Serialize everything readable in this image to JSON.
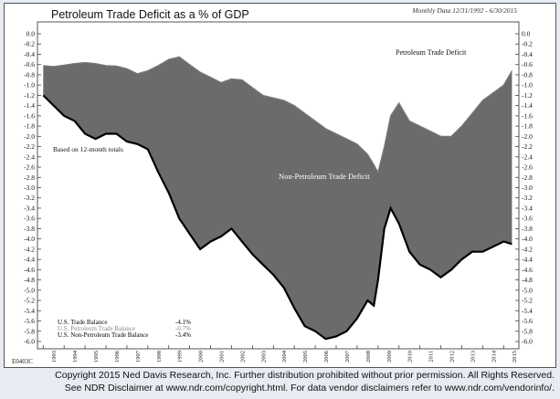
{
  "title": "Petroleum Trade Deficit as a % of GDP",
  "subtitle": "Monthly Data 12/31/1992 - 6/30/2015",
  "chart_code": "E0403C",
  "notes": {
    "based_on": "Based on 12-month totals"
  },
  "area_labels": {
    "petroleum": "Petroleum Trade Deficit",
    "non_petroleum": "Non-Petroleum Trade Deficit"
  },
  "legend": [
    {
      "label": "U.S. Trade Balance",
      "value": "-4.1%",
      "color": "#000000"
    },
    {
      "label": "U.S. Petroleum Trade Balance",
      "value": "-0.7%",
      "color": "#888888"
    },
    {
      "label": "U.S. Non-Petroleum Trade Balance",
      "value": "-3.4%",
      "color": "#000000"
    }
  ],
  "copyright": {
    "line1": "Copyright 2015 Ned Davis Research, Inc. Further distribution prohibited without prior permission. All Rights Reserved.",
    "line2": "See NDR Disclaimer at www.ndr.com/copyright.html. For data vendor disclaimers refer to www.ndr.com/vendorinfo/."
  },
  "colors": {
    "area_fill": "#6b6b6b",
    "petroleum_line": "#7a7a7a",
    "total_line": "#000000",
    "background": "#ffffff"
  },
  "chart_data": {
    "type": "area",
    "x_ticks": [
      "1993",
      "1994",
      "1995",
      "1996",
      "1997",
      "1998",
      "1999",
      "2000",
      "2001",
      "2002",
      "2003",
      "2004",
      "2005",
      "2006",
      "2007",
      "2008",
      "2009",
      "2010",
      "2011",
      "2012",
      "2013",
      "2014",
      "2015"
    ],
    "y_ticks": [
      "0.0",
      "-0.2",
      "-0.4",
      "-0.6",
      "-0.8",
      "-1.0",
      "-1.2",
      "-1.4",
      "-1.6",
      "-1.8",
      "-2.0",
      "-2.2",
      "-2.4",
      "-2.6",
      "-2.8",
      "-3.0",
      "-3.2",
      "-3.4",
      "-3.6",
      "-3.8",
      "-4.0",
      "-4.2",
      "-4.4",
      "-4.6",
      "-4.8",
      "-5.0",
      "-5.2",
      "-5.4",
      "-5.6",
      "-5.8",
      "-6.0"
    ],
    "ylim": [
      -6.2,
      0
    ],
    "xlim": [
      1992.9,
      2015.6
    ],
    "series": [
      {
        "name": "U.S. Petroleum Trade Balance",
        "x": [
          1993.0,
          1993.5,
          1994.0,
          1994.5,
          1995.0,
          1995.5,
          1996.0,
          1996.5,
          1997.0,
          1997.5,
          1998.0,
          1998.5,
          1999.0,
          1999.5,
          2000.0,
          2000.5,
          2001.0,
          2001.5,
          2002.0,
          2002.5,
          2003.0,
          2003.5,
          2004.0,
          2004.5,
          2005.0,
          2005.5,
          2006.0,
          2006.5,
          2007.0,
          2007.5,
          2008.0,
          2008.5,
          2008.8,
          2009.0,
          2009.3,
          2009.6,
          2010.0,
          2010.5,
          2011.0,
          2011.5,
          2012.0,
          2012.5,
          2013.0,
          2013.5,
          2014.0,
          2014.5,
          2015.0,
          2015.4
        ],
        "values": [
          -0.62,
          -0.64,
          -0.61,
          -0.58,
          -0.56,
          -0.58,
          -0.62,
          -0.63,
          -0.68,
          -0.78,
          -0.72,
          -0.62,
          -0.5,
          -0.45,
          -0.6,
          -0.75,
          -0.85,
          -0.95,
          -0.88,
          -0.9,
          -1.05,
          -1.2,
          -1.25,
          -1.3,
          -1.4,
          -1.55,
          -1.7,
          -1.85,
          -1.95,
          -2.05,
          -2.15,
          -2.35,
          -2.55,
          -2.7,
          -2.2,
          -1.6,
          -1.35,
          -1.7,
          -1.8,
          -1.9,
          -2.0,
          -2.0,
          -1.8,
          -1.55,
          -1.3,
          -1.15,
          -1.0,
          -0.72
        ]
      },
      {
        "name": "U.S. Trade Balance",
        "x": [
          1993.0,
          1993.5,
          1994.0,
          1994.5,
          1995.0,
          1995.5,
          1996.0,
          1996.5,
          1997.0,
          1997.5,
          1998.0,
          1998.5,
          1999.0,
          1999.5,
          2000.0,
          2000.5,
          2001.0,
          2001.5,
          2002.0,
          2002.5,
          2003.0,
          2003.5,
          2004.0,
          2004.5,
          2005.0,
          2005.5,
          2006.0,
          2006.5,
          2007.0,
          2007.5,
          2008.0,
          2008.5,
          2008.8,
          2009.0,
          2009.3,
          2009.6,
          2010.0,
          2010.5,
          2011.0,
          2011.5,
          2012.0,
          2012.5,
          2013.0,
          2013.5,
          2014.0,
          2014.5,
          2015.0,
          2015.4
        ],
        "values": [
          -1.2,
          -1.4,
          -1.6,
          -1.7,
          -1.95,
          -2.05,
          -1.95,
          -1.95,
          -2.1,
          -2.15,
          -2.25,
          -2.7,
          -3.1,
          -3.6,
          -3.9,
          -4.2,
          -4.05,
          -3.95,
          -3.8,
          -4.05,
          -4.3,
          -4.5,
          -4.7,
          -4.95,
          -5.35,
          -5.7,
          -5.8,
          -5.95,
          -5.9,
          -5.8,
          -5.55,
          -5.2,
          -5.3,
          -4.8,
          -3.8,
          -3.4,
          -3.7,
          -4.25,
          -4.5,
          -4.6,
          -4.75,
          -4.6,
          -4.4,
          -4.25,
          -4.25,
          -4.15,
          -4.05,
          -4.1
        ]
      }
    ]
  }
}
